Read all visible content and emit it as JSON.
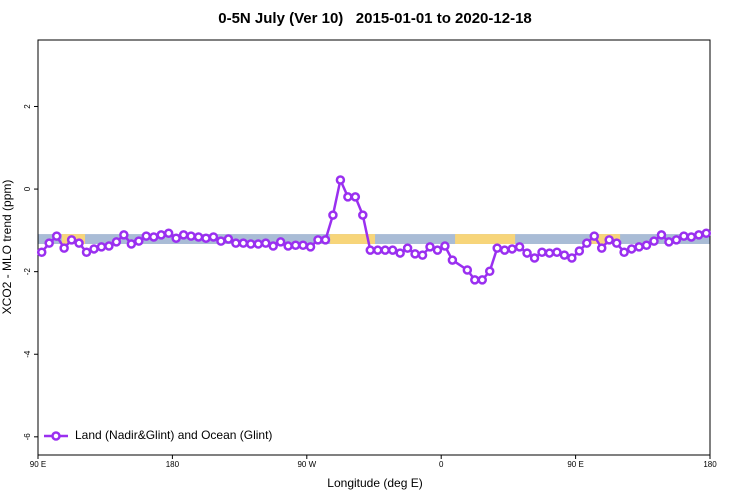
{
  "chart_data": {
    "type": "line",
    "title": "0-5N July (Ver 10)   2015-01-01 to 2020-12-18",
    "x_label": "Longitude (deg E)",
    "y_label": "XCO2 - MLO trend (ppm)",
    "xlim": [
      90,
      540
    ],
    "ylim": [
      -6.44,
      3.61
    ],
    "xticks": [
      {
        "value": 90,
        "label": "90 E"
      },
      {
        "value": 180,
        "label": "180"
      },
      {
        "value": 270,
        "label": "90 W"
      },
      {
        "value": 360,
        "label": "0"
      },
      {
        "value": 450,
        "label": "90 E"
      },
      {
        "value": 540,
        "label": "180"
      }
    ],
    "yticks": [
      -6,
      -4,
      -2,
      0,
      2
    ],
    "legend": "bottom-left",
    "surface_band": {
      "y": [
        -1.33,
        -1.09
      ],
      "segments": [
        {
          "x": [
            90,
            540
          ],
          "color": "#a9bcd6"
        },
        {
          "x": [
            106,
            121.5
          ],
          "color": "#f7d57a"
        },
        {
          "x": [
            285.6,
            315.7
          ],
          "color": "#f7d57a"
        },
        {
          "x": [
            369.3,
            409.5
          ],
          "color": "#f7d57a"
        },
        {
          "x": [
            459.7,
            479.8
          ],
          "color": "#f7d57a"
        }
      ]
    },
    "series": [
      {
        "name": "Land (Nadir&Glint) and Ocean (Glint)",
        "color": "#9a2ff0",
        "x": [
          92.5,
          97.5,
          102.5,
          107.5,
          112.5,
          117.5,
          122.5,
          127.5,
          132.5,
          137.5,
          142.5,
          147.5,
          152.5,
          157.5,
          162.5,
          167.5,
          172.5,
          177.5,
          182.5,
          187.5,
          192.5,
          197.5,
          202.5,
          207.5,
          212.5,
          217.5,
          222.5,
          227.5,
          232.5,
          237.5,
          242.5,
          247.5,
          252.5,
          257.5,
          262.5,
          267.5,
          272.5,
          277.5,
          282.5,
          287.5,
          292.5,
          297.5,
          302.5,
          307.5,
          312.5,
          317.5,
          322.5,
          327.5,
          332.5,
          337.5,
          342.5,
          347.5,
          352.5,
          357.5,
          362.5,
          367.5,
          377.5,
          382.5,
          387.5,
          392.5,
          397.5,
          402.5,
          407.5,
          412.5,
          417.5,
          422.5,
          427.5,
          432.5,
          437.5,
          442.5,
          447.5,
          452.5,
          457.5,
          462.5,
          467.5,
          472.5,
          477.5,
          482.5,
          487.5,
          492.5,
          497.5,
          502.5,
          507.5,
          512.5,
          517.5,
          522.5,
          527.5,
          532.5,
          537.5
        ],
        "values": [
          -1.53,
          -1.31,
          -1.14,
          -1.43,
          -1.23,
          -1.31,
          -1.53,
          -1.45,
          -1.4,
          -1.38,
          -1.28,
          -1.11,
          -1.33,
          -1.26,
          -1.14,
          -1.16,
          -1.11,
          -1.07,
          -1.19,
          -1.11,
          -1.14,
          -1.16,
          -1.19,
          -1.16,
          -1.26,
          -1.21,
          -1.31,
          -1.31,
          -1.33,
          -1.33,
          -1.31,
          -1.38,
          -1.28,
          -1.38,
          -1.36,
          -1.36,
          -1.4,
          -1.23,
          -1.23,
          -0.63,
          0.22,
          -0.19,
          -0.19,
          -0.63,
          -1.48,
          -1.48,
          -1.48,
          -1.48,
          -1.55,
          -1.43,
          -1.57,
          -1.6,
          -1.4,
          -1.48,
          -1.38,
          -1.72,
          -1.96,
          -2.2,
          -2.2,
          -1.99,
          -1.43,
          -1.48,
          -1.45,
          -1.4,
          -1.55,
          -1.67,
          -1.53,
          -1.55,
          -1.53,
          -1.6,
          -1.67,
          -1.5,
          -1.31,
          -1.14,
          -1.43,
          -1.23,
          -1.31,
          -1.53,
          -1.45,
          -1.4,
          -1.36,
          -1.26,
          -1.11,
          -1.28,
          -1.23,
          -1.14,
          -1.16,
          -1.11,
          -1.07
        ]
      }
    ]
  }
}
